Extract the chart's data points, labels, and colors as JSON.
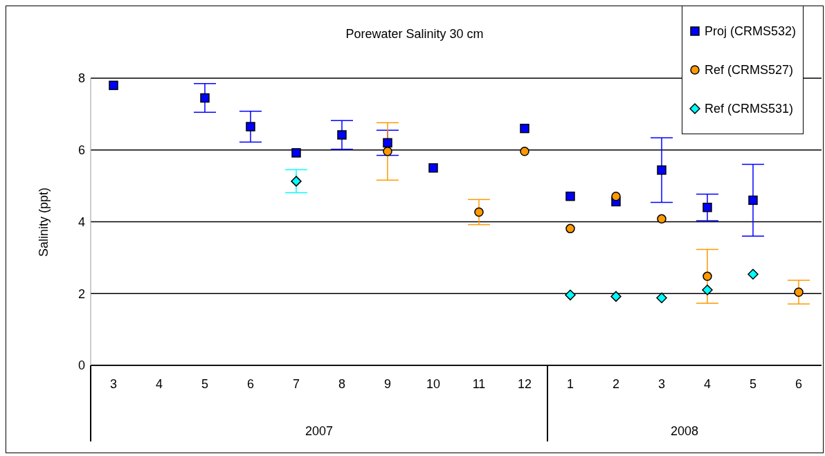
{
  "chart_data": {
    "type": "scatter",
    "title": "Porewater Salinity 30 cm",
    "ylabel": "Salinity (ppt)",
    "categories": [
      "3",
      "4",
      "5",
      "6",
      "7",
      "8",
      "9",
      "10",
      "11",
      "12",
      "1",
      "2",
      "3",
      "4",
      "5",
      "6"
    ],
    "annotations": [
      "2007",
      "2008"
    ],
    "series": [
      {
        "name": "Proj (CRMS532)",
        "color": "#0000ff",
        "marker": "square",
        "values": [
          7.8,
          null,
          7.45,
          6.65,
          5.92,
          6.42,
          6.2,
          5.5,
          null,
          6.6,
          4.71,
          4.56,
          5.44,
          4.4,
          4.6,
          null
        ],
        "errors": [
          null,
          null,
          0.4,
          0.43,
          null,
          0.4,
          0.35,
          null,
          null,
          null,
          null,
          null,
          0.9,
          0.37,
          1.0,
          null
        ]
      },
      {
        "name": "Ref (CRMS527)",
        "color": "#ff9900",
        "marker": "circle",
        "values": [
          null,
          null,
          null,
          null,
          null,
          null,
          5.96,
          null,
          4.27,
          5.96,
          3.81,
          4.71,
          4.08,
          2.48,
          null,
          2.04
        ],
        "errors": [
          null,
          null,
          null,
          null,
          null,
          null,
          0.8,
          null,
          0.35,
          null,
          null,
          null,
          null,
          0.75,
          null,
          0.33
        ]
      },
      {
        "name": "Ref (CRMS531)",
        "color": "#00ffff",
        "marker": "diamond",
        "values": [
          null,
          null,
          null,
          null,
          5.13,
          null,
          null,
          null,
          null,
          null,
          1.96,
          1.92,
          1.88,
          2.1,
          2.54,
          null
        ],
        "errors": [
          null,
          null,
          null,
          null,
          0.32,
          null,
          null,
          null,
          null,
          null,
          null,
          null,
          null,
          null,
          null,
          null
        ]
      }
    ],
    "ylim": [
      0,
      8
    ],
    "yticks": [
      0,
      2,
      4,
      6,
      8
    ],
    "grid": "y",
    "legend": "top right"
  }
}
